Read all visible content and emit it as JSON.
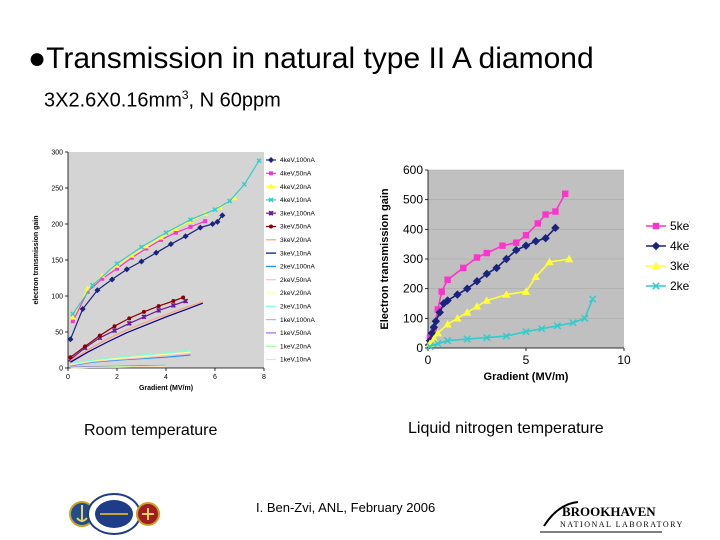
{
  "slide": {
    "title": "Transmission in natural type II A diamond",
    "bullet": "●",
    "subtitle_main": "3X2.6X0.16mm",
    "subtitle_sup": "3",
    "subtitle_tail": ", N 60ppm",
    "caption_left": "Room temperature",
    "caption_right": "Liquid nitrogen temperature",
    "footer": "I. Ben-Zvi, ANL, February 2006",
    "logo_right_word": "BROOKHAVEN",
    "logo_right_sub": "NATIONAL LABORATORY"
  },
  "colors": {
    "c5keV": "#ff33cc",
    "c4keV": "#1a237e",
    "c3keV": "#ffff33",
    "c2keV": "#33cccc",
    "plot_bg": "#c0c0c0",
    "plot_bg_left": "#d4d4d4"
  },
  "chart_data": [
    {
      "type": "scatter",
      "title": "",
      "xlabel": "Gradient (MV/m)",
      "ylabel": "electron transmission gain",
      "xlim": [
        0,
        8
      ],
      "ylim": [
        0,
        300
      ],
      "x_ticks": [
        "0",
        "2",
        "4",
        "6",
        "8"
      ],
      "y_ticks": [
        "0",
        "50",
        "100",
        "150",
        "200",
        "250",
        "300"
      ],
      "legend_position": "right",
      "series": [
        {
          "name": "4keV,100nA",
          "color": "#1a237e",
          "marker": "diamond",
          "x": [
            0.1,
            0.6,
            1.2,
            1.8,
            2.4,
            3.0,
            3.6,
            4.2,
            4.8,
            5.4,
            5.9,
            6.1,
            6.3
          ],
          "y": [
            40,
            82,
            108,
            123,
            137,
            148,
            160,
            172,
            183,
            195,
            200,
            203,
            212
          ]
        },
        {
          "name": "4keV,50nA",
          "color": "#ff33cc",
          "marker": "square",
          "x": [
            0.2,
            0.8,
            1.4,
            2.0,
            2.6,
            3.2,
            3.8,
            4.4,
            5.0,
            5.6
          ],
          "y": [
            65,
            106,
            124,
            138,
            153,
            166,
            178,
            188,
            196,
            204
          ]
        },
        {
          "name": "4keV,20nA",
          "color": "#ffff33",
          "marker": "triangle",
          "x": [
            0.2,
            0.8,
            1.4,
            2.0,
            2.6,
            3.2,
            3.8,
            4.4,
            5.0,
            5.6,
            6.2,
            6.8
          ],
          "y": [
            70,
            110,
            128,
            142,
            156,
            169,
            181,
            193,
            204,
            214,
            223,
            236
          ]
        },
        {
          "name": "4keV,10nA",
          "color": "#33cccc",
          "marker": "x",
          "x": [
            0.2,
            1.0,
            2.0,
            3.0,
            4.0,
            5.0,
            6.0,
            6.6,
            7.2,
            7.8
          ],
          "y": [
            75,
            115,
            145,
            168,
            188,
            206,
            220,
            232,
            255,
            288
          ]
        },
        {
          "name": "3keV,100nA",
          "color": "#6a1b9a",
          "marker": "star",
          "x": [
            0.1,
            0.7,
            1.3,
            1.9,
            2.5,
            3.1,
            3.7,
            4.3,
            4.8
          ],
          "y": [
            12,
            28,
            42,
            52,
            62,
            71,
            80,
            87,
            93
          ]
        },
        {
          "name": "3keV,50nA",
          "color": "#8b0000",
          "marker": "circle",
          "x": [
            0.1,
            0.7,
            1.3,
            1.9,
            2.5,
            3.1,
            3.7,
            4.3,
            4.7
          ],
          "y": [
            15,
            30,
            45,
            58,
            69,
            78,
            86,
            93,
            98
          ]
        },
        {
          "name": "3keV,20nA",
          "color": "#ffa07a",
          "marker": "none",
          "x": [
            0.1,
            0.8,
            1.6,
            2.4,
            3.2,
            4.0,
            4.8,
            5.5
          ],
          "y": [
            10,
            25,
            40,
            53,
            64,
            74,
            84,
            92
          ]
        },
        {
          "name": "3keV,10nA",
          "color": "#00008b",
          "marker": "none",
          "x": [
            0.1,
            0.8,
            1.6,
            2.4,
            3.2,
            4.0,
            4.8,
            5.5
          ],
          "y": [
            8,
            22,
            36,
            49,
            60,
            71,
            81,
            90
          ]
        },
        {
          "name": "2keV,100nA",
          "color": "#1e90ff",
          "marker": "none",
          "x": [
            0.1,
            1.0,
            2.0,
            3.0,
            4.0,
            5.0
          ],
          "y": [
            3,
            8,
            11,
            13,
            15,
            18
          ]
        },
        {
          "name": "2keV,50nA",
          "color": "#ffc0cb",
          "marker": "none",
          "x": [
            0.1,
            1.0,
            2.0,
            3.0,
            4.0,
            5.0
          ],
          "y": [
            4,
            9,
            12,
            14,
            17,
            20
          ]
        },
        {
          "name": "2keV,20nA",
          "color": "#ffff99",
          "marker": "none",
          "x": [
            0.1,
            1.0,
            2.0,
            3.0,
            4.0,
            5.0
          ],
          "y": [
            5,
            10,
            13,
            16,
            19,
            22
          ]
        },
        {
          "name": "2keV,10nA",
          "color": "#7fffd4",
          "marker": "none",
          "x": [
            0.1,
            1.0,
            2.0,
            3.0,
            4.0,
            5.0
          ],
          "y": [
            6,
            11,
            15,
            18,
            21,
            25
          ]
        },
        {
          "name": "1keV,100nA",
          "color": "#87ceeb",
          "marker": "none",
          "x": [
            0.1,
            1.0,
            2.0,
            3.0,
            4.0
          ],
          "y": [
            1,
            2,
            3,
            3,
            4
          ]
        },
        {
          "name": "1keV,50nA",
          "color": "#9370db",
          "marker": "none",
          "x": [
            0.1,
            1.0,
            2.0,
            3.0,
            4.0
          ],
          "y": [
            1,
            2,
            2,
            3,
            3
          ]
        },
        {
          "name": "1keV,20nA",
          "color": "#98fb98",
          "marker": "none",
          "x": [
            0.1,
            1.0,
            2.0,
            3.0,
            4.0
          ],
          "y": [
            0,
            1,
            2,
            2,
            3
          ]
        },
        {
          "name": "1keV,10nA",
          "color": "#f5deb3",
          "marker": "none",
          "x": [
            0.1,
            1.0,
            2.0,
            3.0,
            4.0
          ],
          "y": [
            0,
            1,
            1,
            2,
            2
          ]
        }
      ]
    },
    {
      "type": "line",
      "title": "",
      "xlabel": "Gradient (MV/m)",
      "ylabel": "Electron transmission gain",
      "xlim": [
        0,
        10
      ],
      "ylim": [
        0,
        600
      ],
      "x_ticks": [
        "0",
        "5",
        "10"
      ],
      "y_ticks": [
        "0",
        "100",
        "200",
        "300",
        "400",
        "500",
        "600"
      ],
      "legend_position": "right",
      "series": [
        {
          "name": "5keV",
          "color": "#ff33cc",
          "marker": "square",
          "x": [
            0.1,
            0.3,
            0.5,
            0.7,
            1.0,
            1.8,
            2.5,
            3.0,
            3.8,
            4.5,
            5.0,
            5.6,
            6.0,
            6.5,
            7.0
          ],
          "y": [
            35,
            60,
            130,
            190,
            230,
            270,
            305,
            320,
            345,
            355,
            380,
            420,
            450,
            460,
            520
          ]
        },
        {
          "name": "4keV",
          "color": "#1a237e",
          "marker": "diamond",
          "x": [
            0.05,
            0.1,
            0.2,
            0.3,
            0.4,
            0.6,
            0.8,
            1.0,
            1.5,
            2.0,
            2.5,
            3.0,
            3.5,
            4.0,
            4.5,
            5.0,
            5.5,
            6.0,
            6.5
          ],
          "y": [
            10,
            25,
            50,
            70,
            90,
            120,
            150,
            160,
            180,
            200,
            225,
            250,
            270,
            300,
            330,
            345,
            360,
            370,
            405
          ]
        },
        {
          "name": "3keV",
          "color": "#ffff33",
          "marker": "triangle",
          "x": [
            0.1,
            0.3,
            0.5,
            1.0,
            1.5,
            2.0,
            2.5,
            3.0,
            4.0,
            5.0,
            5.5,
            6.2,
            7.2
          ],
          "y": [
            15,
            30,
            50,
            80,
            100,
            120,
            140,
            160,
            180,
            190,
            240,
            290,
            300
          ]
        },
        {
          "name": "2keV",
          "color": "#33cccc",
          "marker": "x",
          "x": [
            0.1,
            0.5,
            1.0,
            2.0,
            3.0,
            4.0,
            5.0,
            5.8,
            6.6,
            7.4,
            8.0,
            8.4
          ],
          "y": [
            5,
            15,
            25,
            30,
            35,
            40,
            55,
            65,
            75,
            85,
            100,
            165
          ]
        }
      ]
    }
  ]
}
